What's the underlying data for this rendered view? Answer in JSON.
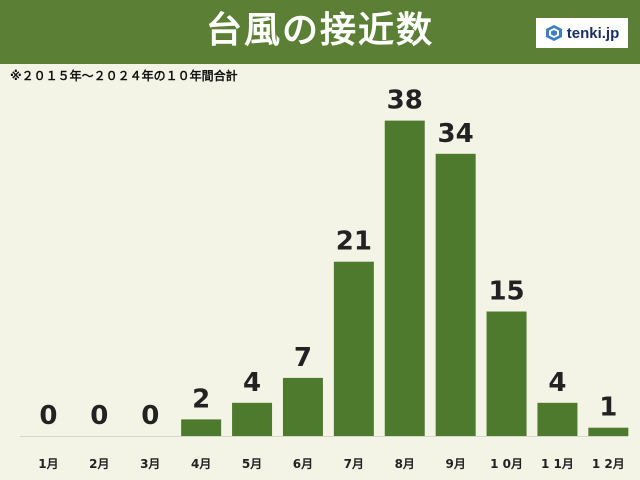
{
  "header": {
    "title": "台風の接近数",
    "brand": "tenki.jp",
    "color": "#5b7f34"
  },
  "note": "※２０１５年～２０２４年の１０年間合計",
  "chart_data": {
    "type": "bar",
    "categories": [
      "1月",
      "2月",
      "3月",
      "4月",
      "5月",
      "6月",
      "7月",
      "8月",
      "9月",
      "1 0月",
      "1 1月",
      "1 2月"
    ],
    "values": [
      0,
      0,
      0,
      2,
      4,
      7,
      21,
      38,
      34,
      15,
      4,
      1
    ],
    "value_labels": [
      "0",
      "0",
      "0",
      "2",
      "4",
      "7",
      "21",
      "38",
      "34",
      "15",
      "4",
      "1"
    ],
    "title": "台風の接近数",
    "xlabel": "",
    "ylabel": "",
    "ylim": [
      0,
      38
    ],
    "grid": false,
    "bar_color": "#4e7a2e"
  }
}
